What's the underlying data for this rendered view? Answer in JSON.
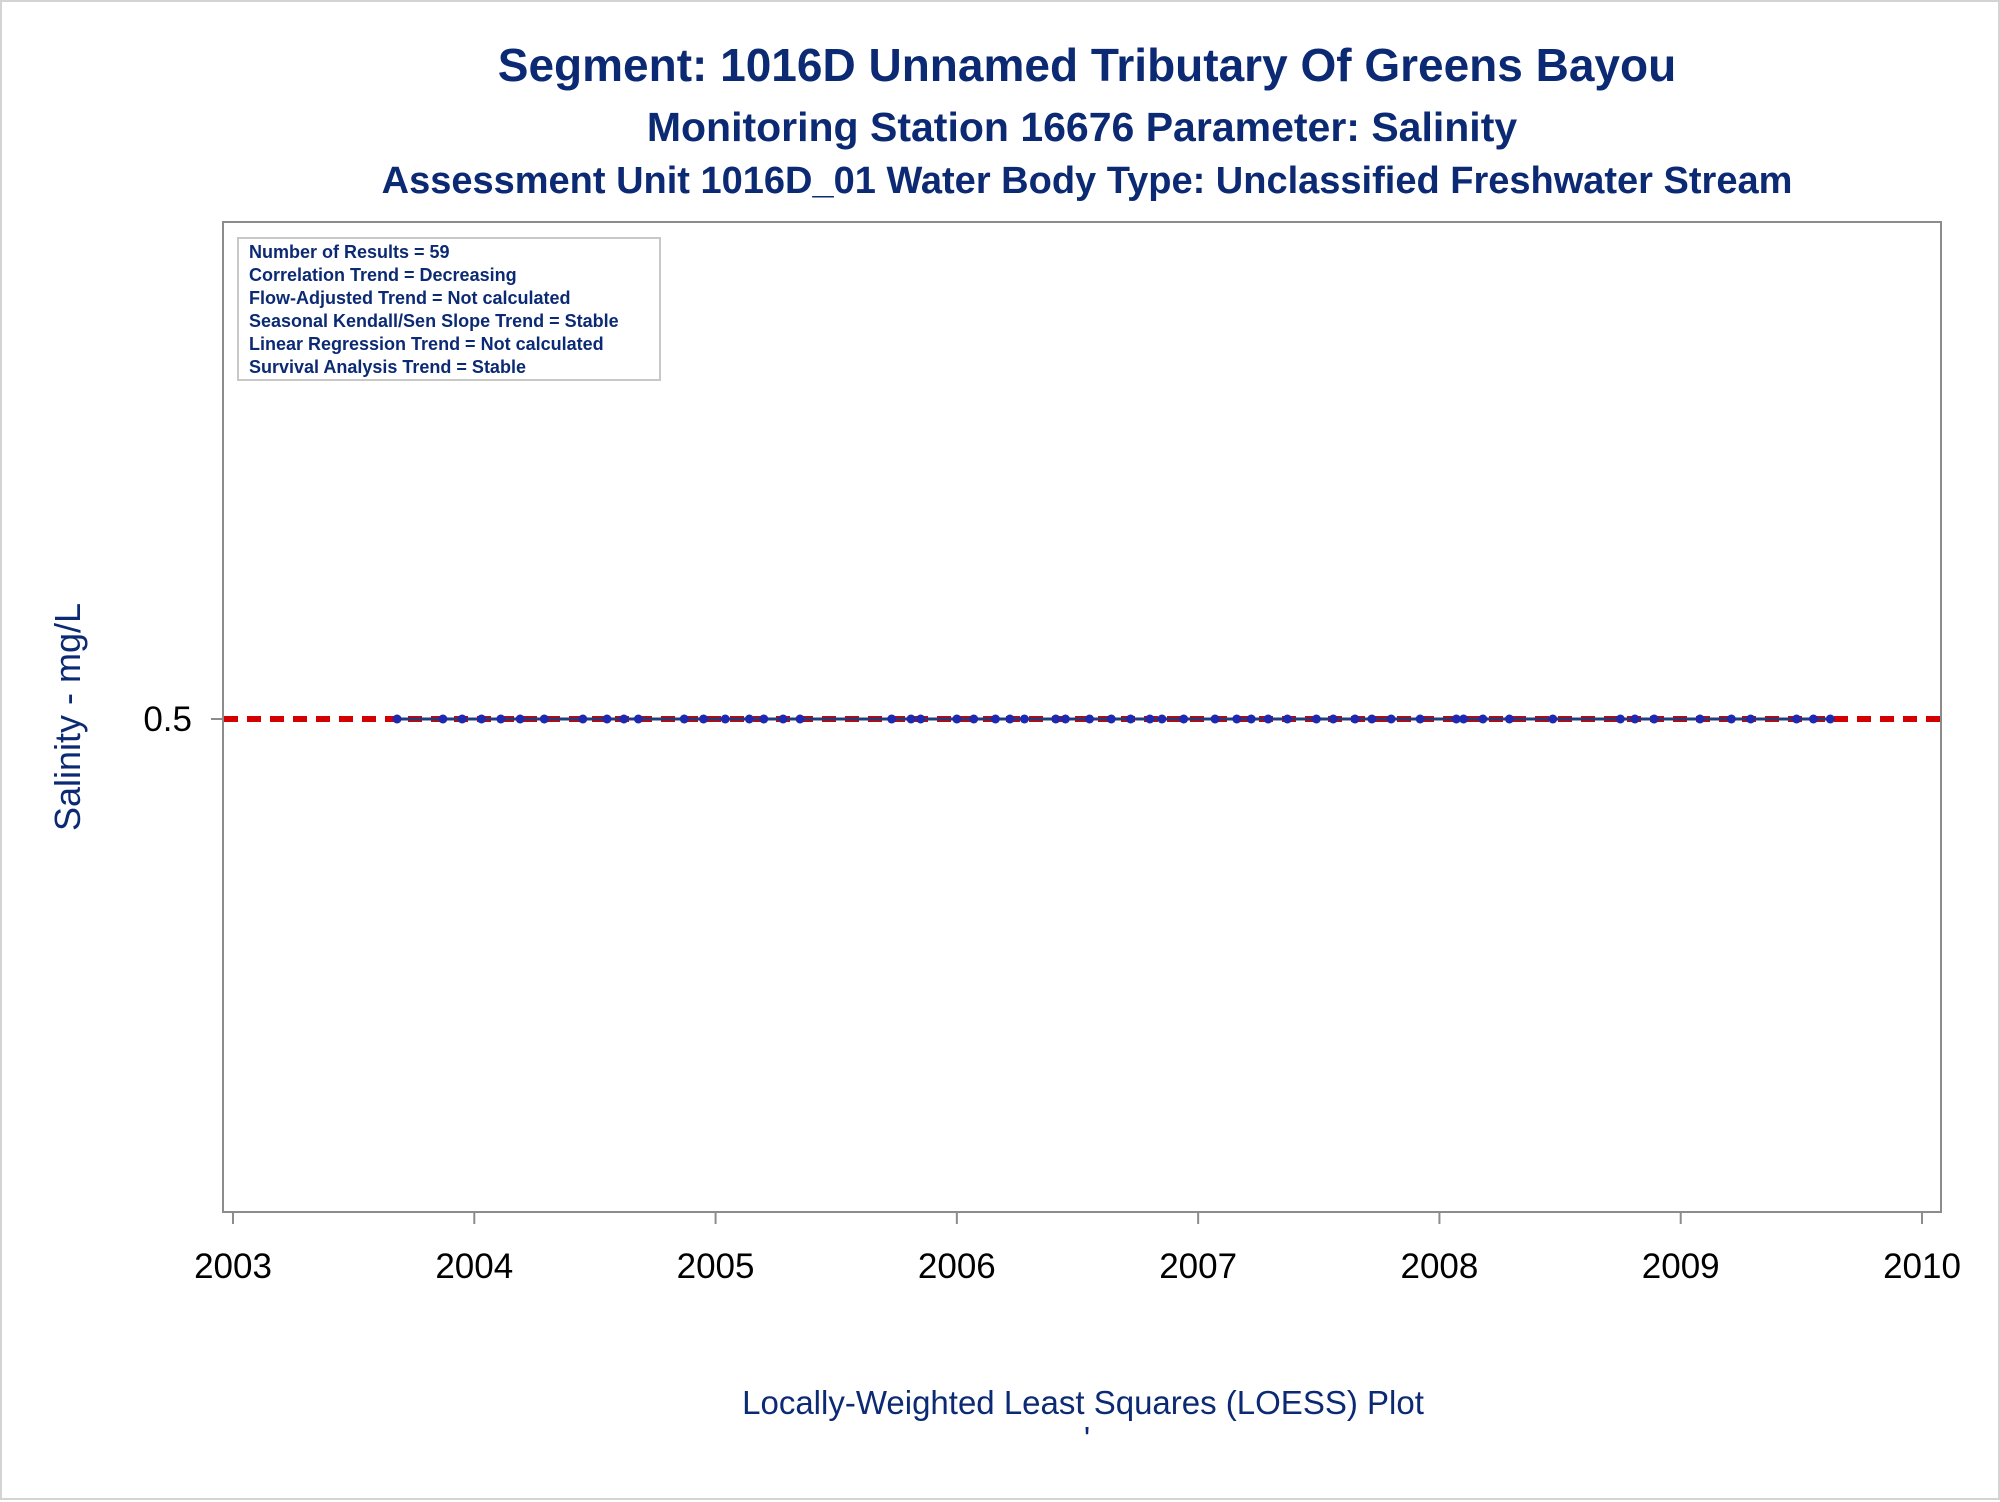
{
  "colors": {
    "title": "#0c2a74",
    "frame": "#8c8c8c",
    "data_line": "#1f3d7a",
    "marker": "#1c29b0",
    "reference_line": "#d20000",
    "outer_border": "#d4d4d4"
  },
  "titles": {
    "line1": "Segment: 1016D  Unnamed Tributary Of Greens Bayou",
    "line2": "Monitoring Station 16676 Parameter: Salinity",
    "line3": "Assessment Unit 1016D_01   Water Body Type: Unclassified Freshwater Stream"
  },
  "caption": "Locally-Weighted Least Squares (LOESS) Plot",
  "caption_mark": "'",
  "stats": [
    "Number of Results = 59",
    "Correlation Trend = Decreasing",
    "Flow-Adjusted Trend = Not calculated",
    "Seasonal Kendall/Sen Slope Trend = Stable",
    "Linear Regression Trend = Not calculated",
    "Survival Analysis Trend = Stable"
  ],
  "chart_data": {
    "type": "scatter",
    "ylabel": "Salinity - mg/L",
    "xlim": [
      2003,
      2010
    ],
    "xticks": [
      "2003",
      "2004",
      "2005",
      "2006",
      "2007",
      "2008",
      "2009",
      "2010"
    ],
    "yticks": [
      {
        "value": 0.5,
        "label": "0.5"
      }
    ],
    "reference_line": {
      "y": 0.5,
      "style": "dashed",
      "color": "#d20000"
    },
    "loess_line": {
      "x": [
        2003.68,
        2009.62
      ],
      "y": [
        0.5,
        0.5
      ]
    },
    "grid": false,
    "legend": "stats box top-left",
    "series": [
      {
        "x": [
          2003.68,
          2003.87,
          2003.95,
          2004.03,
          2004.11,
          2004.19,
          2004.29,
          2004.45,
          2004.55,
          2004.62,
          2004.68,
          2004.87,
          2004.95,
          2005.04,
          2005.14,
          2005.2,
          2005.28,
          2005.35,
          2005.73,
          2005.81,
          2005.85,
          2006.0,
          2006.07,
          2006.16,
          2006.22,
          2006.28,
          2006.41,
          2006.45,
          2006.55,
          2006.64,
          2006.72,
          2006.8,
          2006.85,
          2006.94,
          2007.07,
          2007.16,
          2007.22,
          2007.29,
          2007.37,
          2007.49,
          2007.56,
          2007.65,
          2007.72,
          2007.8,
          2007.92,
          2008.07,
          2008.1,
          2008.18,
          2008.29,
          2008.47,
          2008.75,
          2008.81,
          2008.89,
          2009.08,
          2009.21,
          2009.29,
          2009.48,
          2009.55,
          2009.62
        ],
        "y": [
          0.5,
          0.5,
          0.5,
          0.5,
          0.5,
          0.5,
          0.5,
          0.5,
          0.5,
          0.5,
          0.5,
          0.5,
          0.5,
          0.5,
          0.5,
          0.5,
          0.5,
          0.5,
          0.5,
          0.5,
          0.5,
          0.5,
          0.5,
          0.5,
          0.5,
          0.5,
          0.5,
          0.5,
          0.5,
          0.5,
          0.5,
          0.5,
          0.5,
          0.5,
          0.5,
          0.5,
          0.5,
          0.5,
          0.5,
          0.5,
          0.5,
          0.5,
          0.5,
          0.5,
          0.5,
          0.5,
          0.5,
          0.5,
          0.5,
          0.5,
          0.5,
          0.5,
          0.5,
          0.5,
          0.5,
          0.5,
          0.5,
          0.5,
          0.5
        ]
      }
    ]
  }
}
